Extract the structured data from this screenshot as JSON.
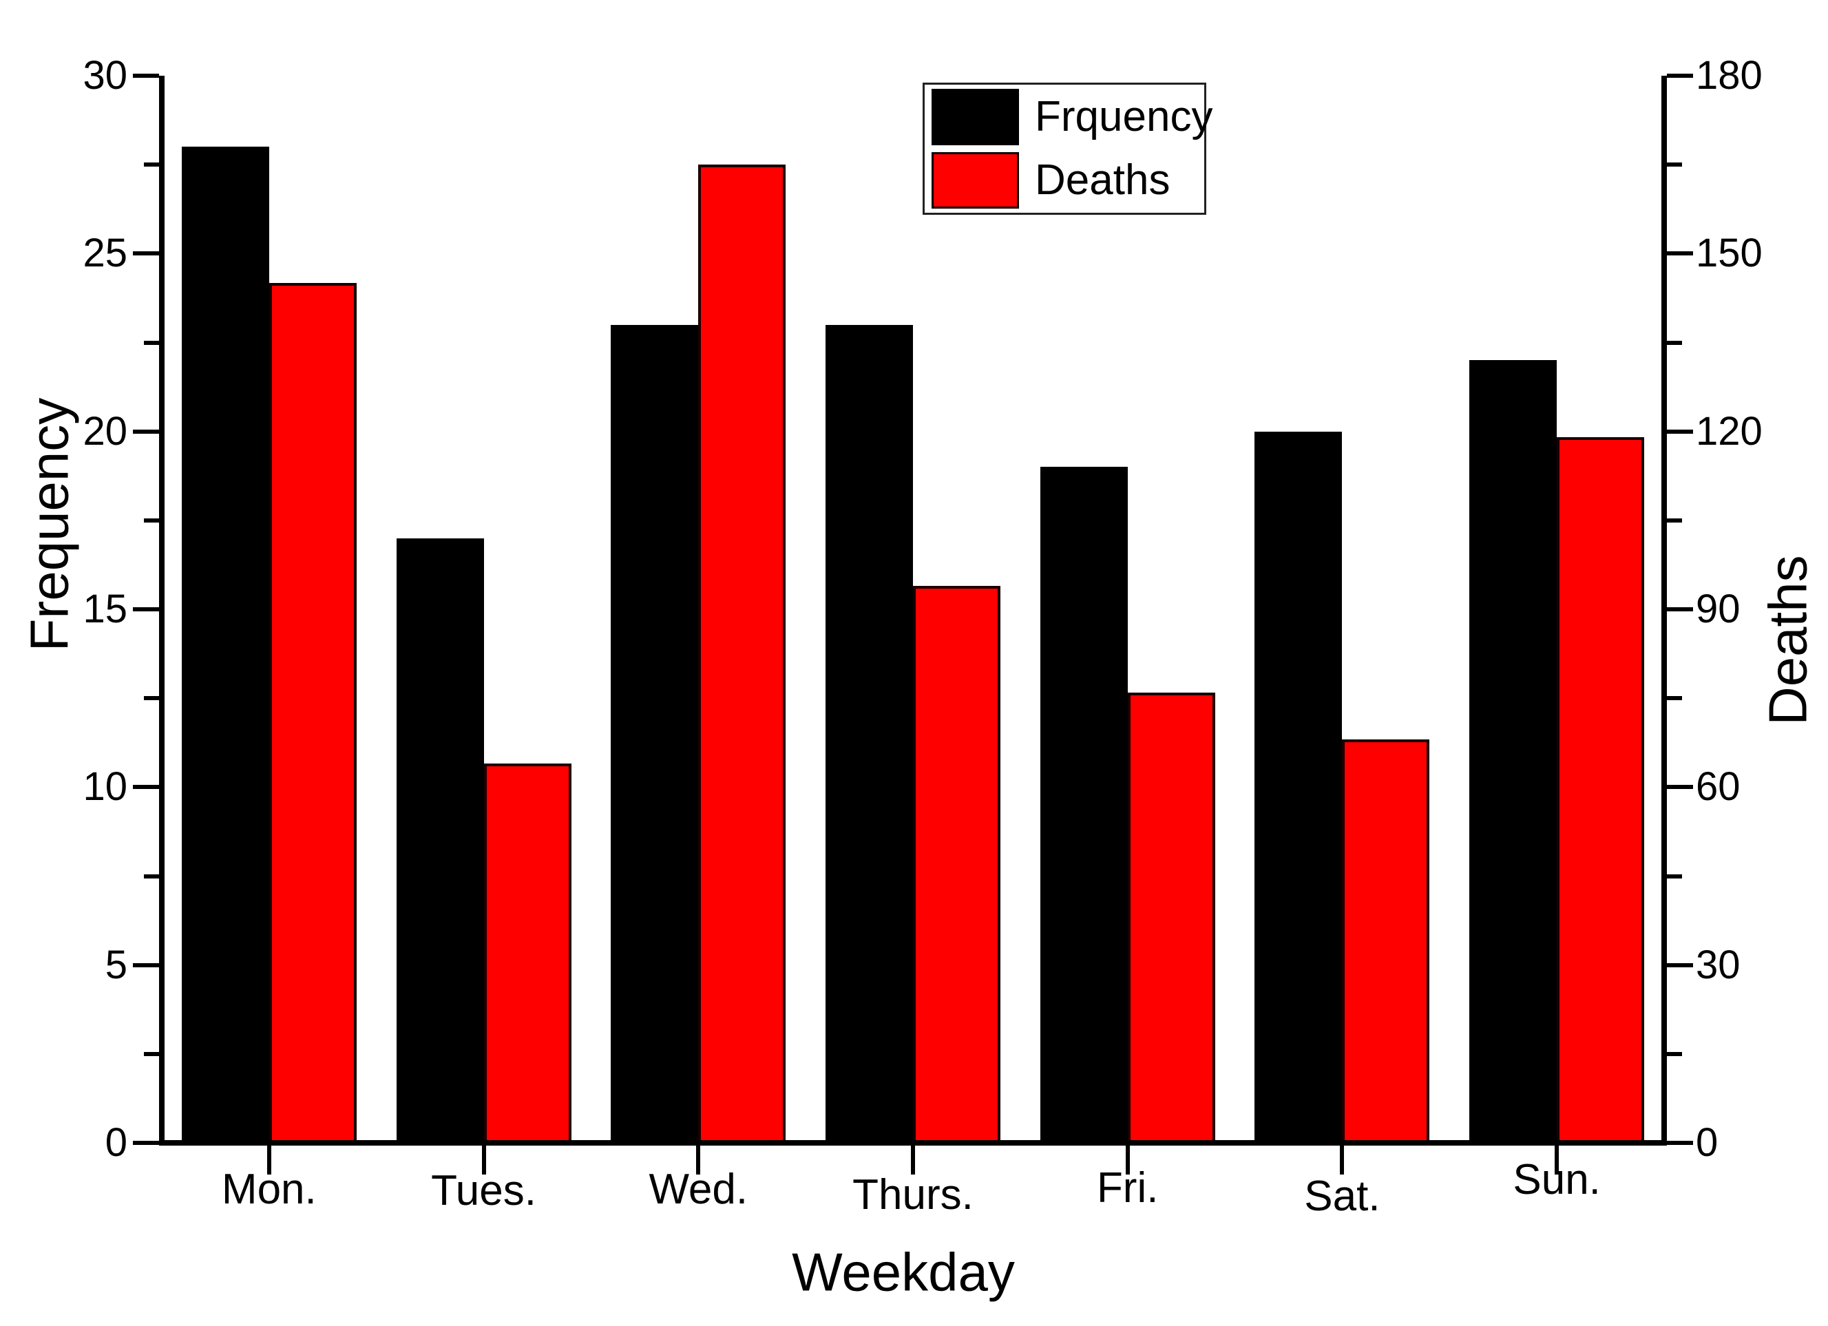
{
  "chart_data": {
    "type": "bar",
    "categories": [
      "Mon.",
      "Tues.",
      "Wed.",
      "Thurs.",
      "Fri.",
      "Sat.",
      "Sun."
    ],
    "series": [
      {
        "name": "Frquency",
        "axis": "left",
        "color": "#000000",
        "values": [
          28,
          17,
          23,
          23,
          19,
          20,
          22
        ]
      },
      {
        "name": "Deaths",
        "axis": "right",
        "color": "#fe0000",
        "values": [
          145,
          64,
          165,
          94,
          76,
          68,
          119
        ]
      }
    ],
    "left_axis": {
      "label": "Frequency",
      "min": 0,
      "max": 30,
      "major_step": 5,
      "minor_step": 2.5,
      "ticks": [
        "0",
        "5",
        "10",
        "15",
        "20",
        "25",
        "30"
      ]
    },
    "right_axis": {
      "label": "Deaths",
      "min": 0,
      "max": 180,
      "major_step": 30,
      "minor_step": 15,
      "ticks": [
        "0",
        "30",
        "60",
        "90",
        "120",
        "150",
        "180"
      ]
    },
    "x_axis": {
      "label": "Weekday"
    },
    "legend": {
      "position": "top-center",
      "entries": [
        {
          "label": "Frquency",
          "color": "#000000"
        },
        {
          "label": "Deaths",
          "color": "#fe0000"
        }
      ]
    },
    "grid": false,
    "background": "#ffffff"
  }
}
